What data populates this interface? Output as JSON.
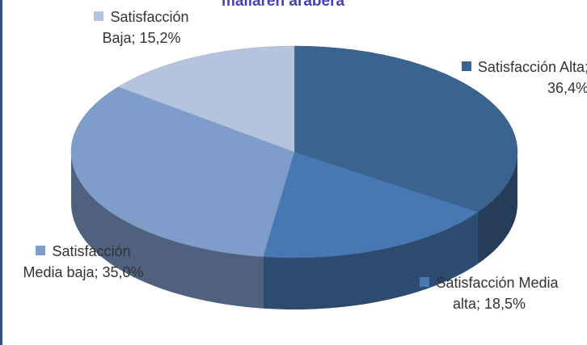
{
  "chart_data": {
    "type": "pie",
    "title": "mailaren arabera",
    "values": [
      36.4,
      18.5,
      35.0,
      15.2
    ],
    "value_labels": [
      "Satisfacción Alta; 36,4%",
      "Satisfacción Media alta; 18,5%",
      "Satisfacción Media baja; 35,0%",
      "Satisfacción Baja; 15,2%"
    ],
    "colors": [
      "#3b6390",
      "#4878b3",
      "#7f9dcb",
      "#b5c4de"
    ]
  }
}
